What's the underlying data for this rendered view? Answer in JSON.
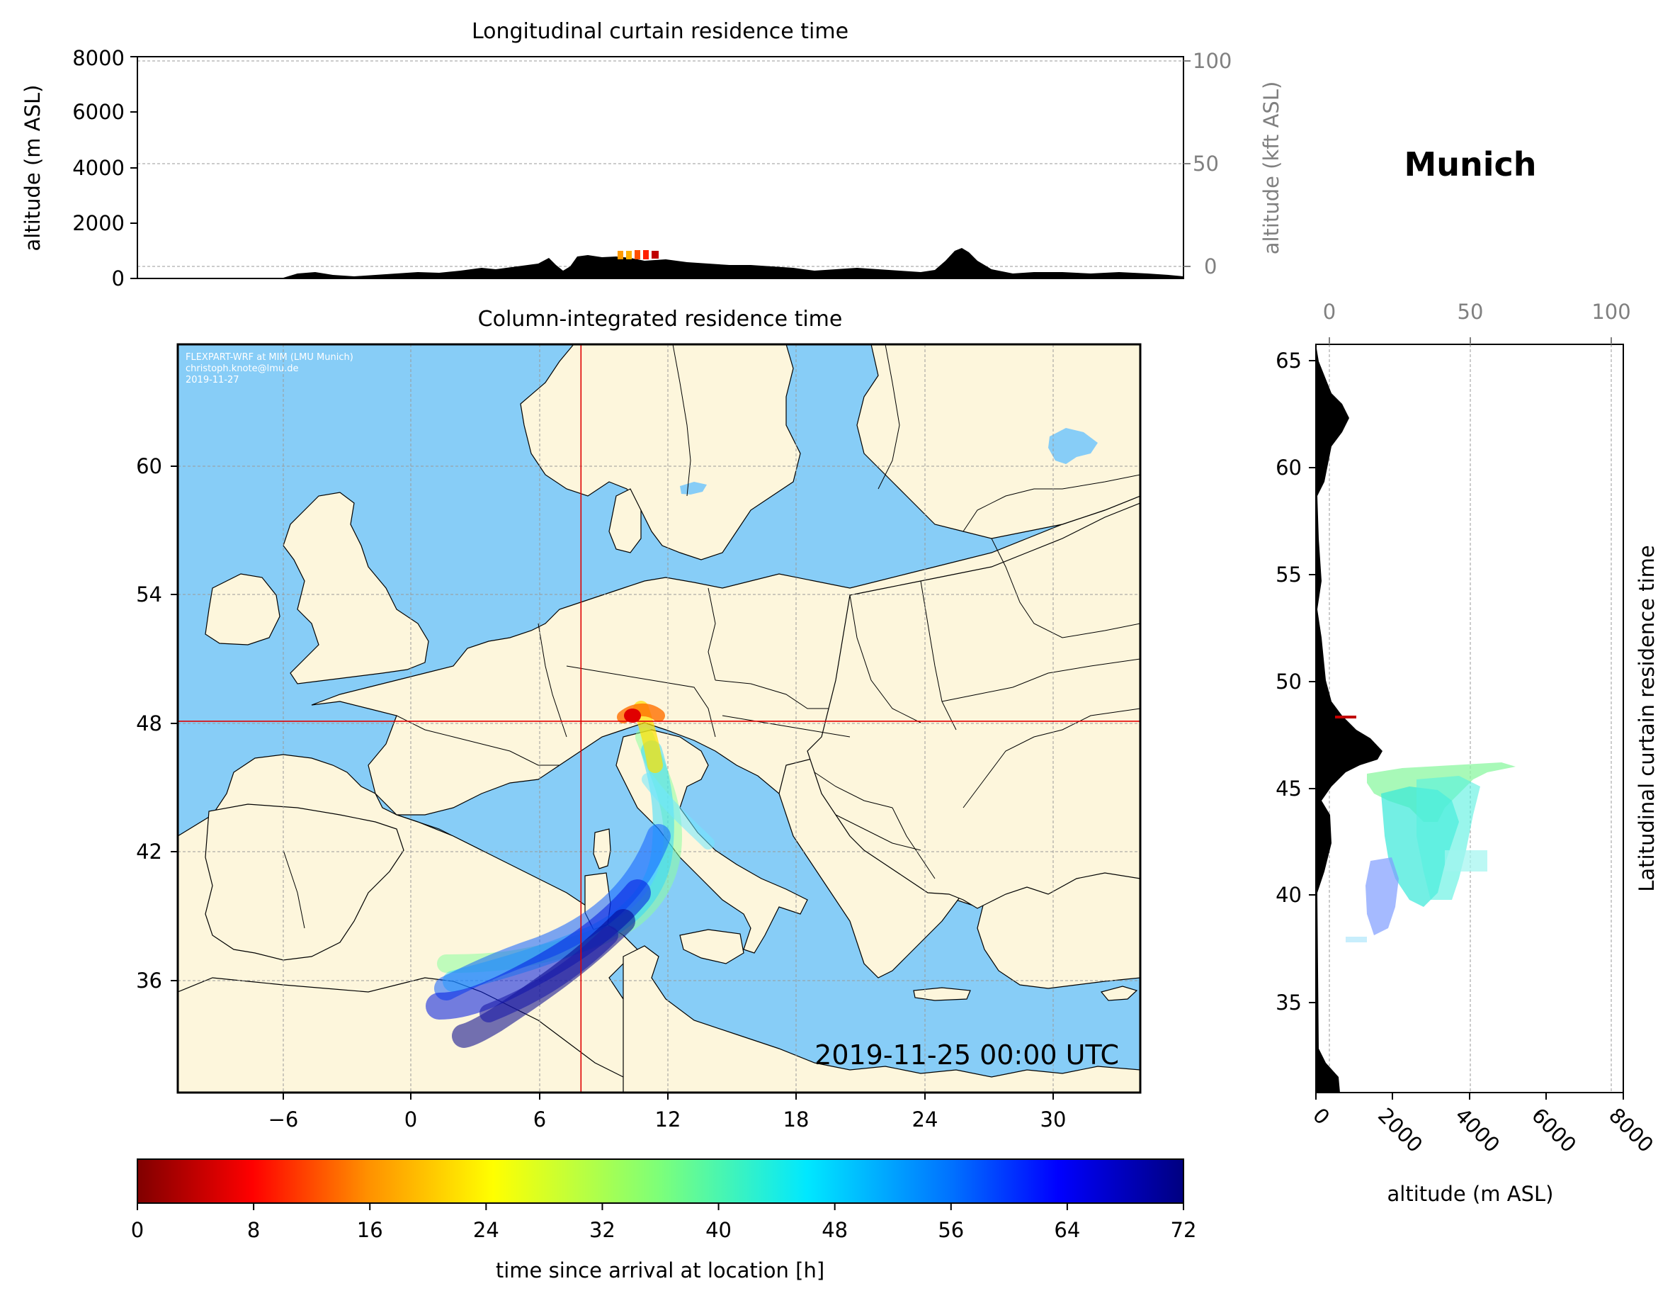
{
  "header": {
    "location_title": "Munich",
    "credit_lines": [
      "FLEXPART-WRF at MIM (LMU Munich)",
      "christoph.knote@lmu.de",
      "2019-11-27"
    ]
  },
  "top_panel": {
    "title": "Longitudinal curtain residence time",
    "ylabel_left": "altitude (m ASL)",
    "ylabel_right": "altitude (kft ASL)",
    "yticks_left": [
      "0",
      "2000",
      "4000",
      "6000",
      "8000"
    ],
    "yticks_right": [
      "0",
      "50",
      "100"
    ]
  },
  "map_panel": {
    "title": "Column-integrated residence time",
    "timestamp": "2019-11-25 00:00 UTC",
    "xticks": [
      "−6",
      "0",
      "6",
      "12",
      "18",
      "24",
      "30"
    ],
    "yticks": [
      "36",
      "42",
      "48",
      "54",
      "60"
    ],
    "release_lon": 11.6,
    "release_lat": 48.1,
    "colors": {
      "ocean": "#87cdf7",
      "land": "#fdf6dc",
      "crosshair": "#e00000"
    }
  },
  "side_panel": {
    "ylabel": "Latitudinal curtain residence time",
    "xlabel": "altitude (m ASL)",
    "xticks_bottom": [
      "0",
      "2000",
      "4000",
      "6000",
      "8000"
    ],
    "xticks_top": [
      "0",
      "50",
      "100"
    ],
    "yticks": [
      "35",
      "40",
      "45",
      "50",
      "55",
      "60",
      "65"
    ]
  },
  "colorbar": {
    "label": "time since arrival at location [h]",
    "ticks": [
      "0",
      "8",
      "16",
      "24",
      "32",
      "40",
      "48",
      "56",
      "64",
      "72"
    ],
    "colormap": "jet_r",
    "range": [
      0,
      72
    ]
  }
}
